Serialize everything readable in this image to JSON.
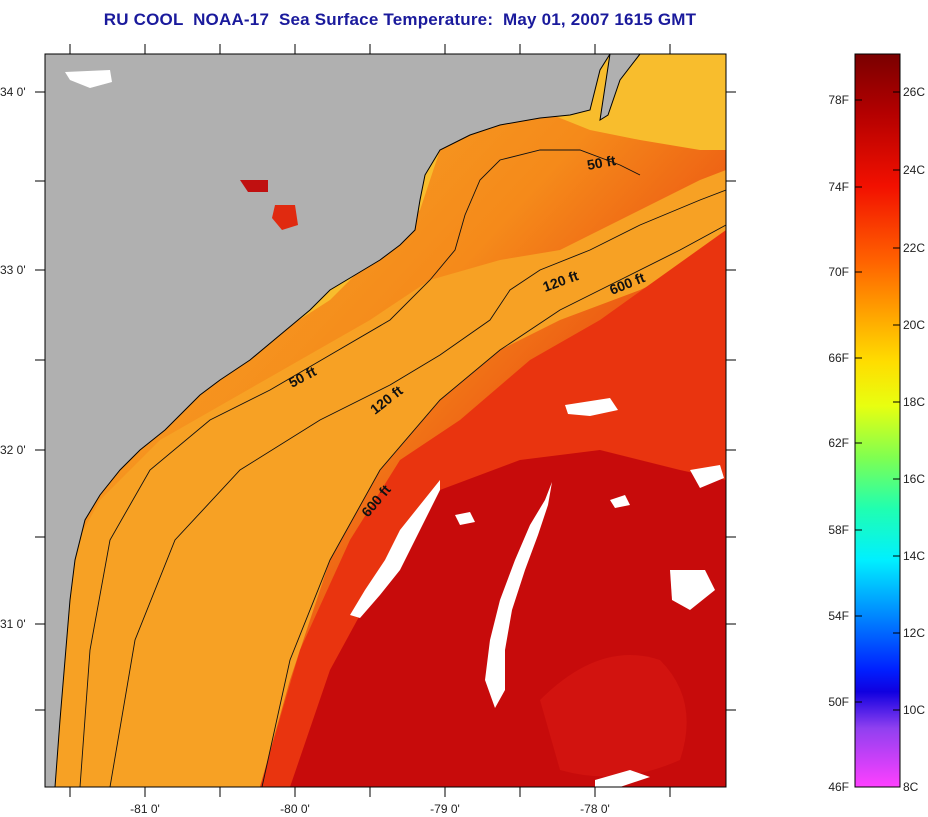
{
  "title": "RU COOL  NOAA-17  Sea Surface Temperature:  May 01, 2007 1615 GMT",
  "map": {
    "lat_ticks": [
      "34 0'",
      "33 0'",
      "32 0'",
      "31 0'"
    ],
    "lon_ticks": [
      "-81 0'",
      "-80 0'",
      "-79 0'",
      "-78 0'"
    ],
    "contour_labels": [
      "50 ft",
      "120 ft",
      "600 ft",
      "50 ft",
      "120 ft",
      "600 ft"
    ],
    "colors": {
      "land": "#b0b0b0",
      "cloud": "#ffffff",
      "shelf": "#f6a623",
      "mid": "#f46a12",
      "offshore": "#e1250f",
      "stream": "#c60a0a",
      "coast_line": "#000000"
    }
  },
  "colorbar": {
    "fahrenheit_labels": [
      "78F",
      "74F",
      "70F",
      "66F",
      "62F",
      "58F",
      "54F",
      "50F",
      "46F"
    ],
    "celsius_labels": [
      "26C",
      "24C",
      "22C",
      "20C",
      "18C",
      "16C",
      "14C",
      "12C",
      "10C",
      "8C"
    ],
    "gradient_colors": [
      "#7a0000",
      "#c00000",
      "#ff2000",
      "#ff7000",
      "#ffb800",
      "#ffff00",
      "#a0ff40",
      "#30ff90",
      "#00ffff",
      "#0090ff",
      "#0010ff",
      "#8040ff",
      "#ff40ff"
    ]
  }
}
